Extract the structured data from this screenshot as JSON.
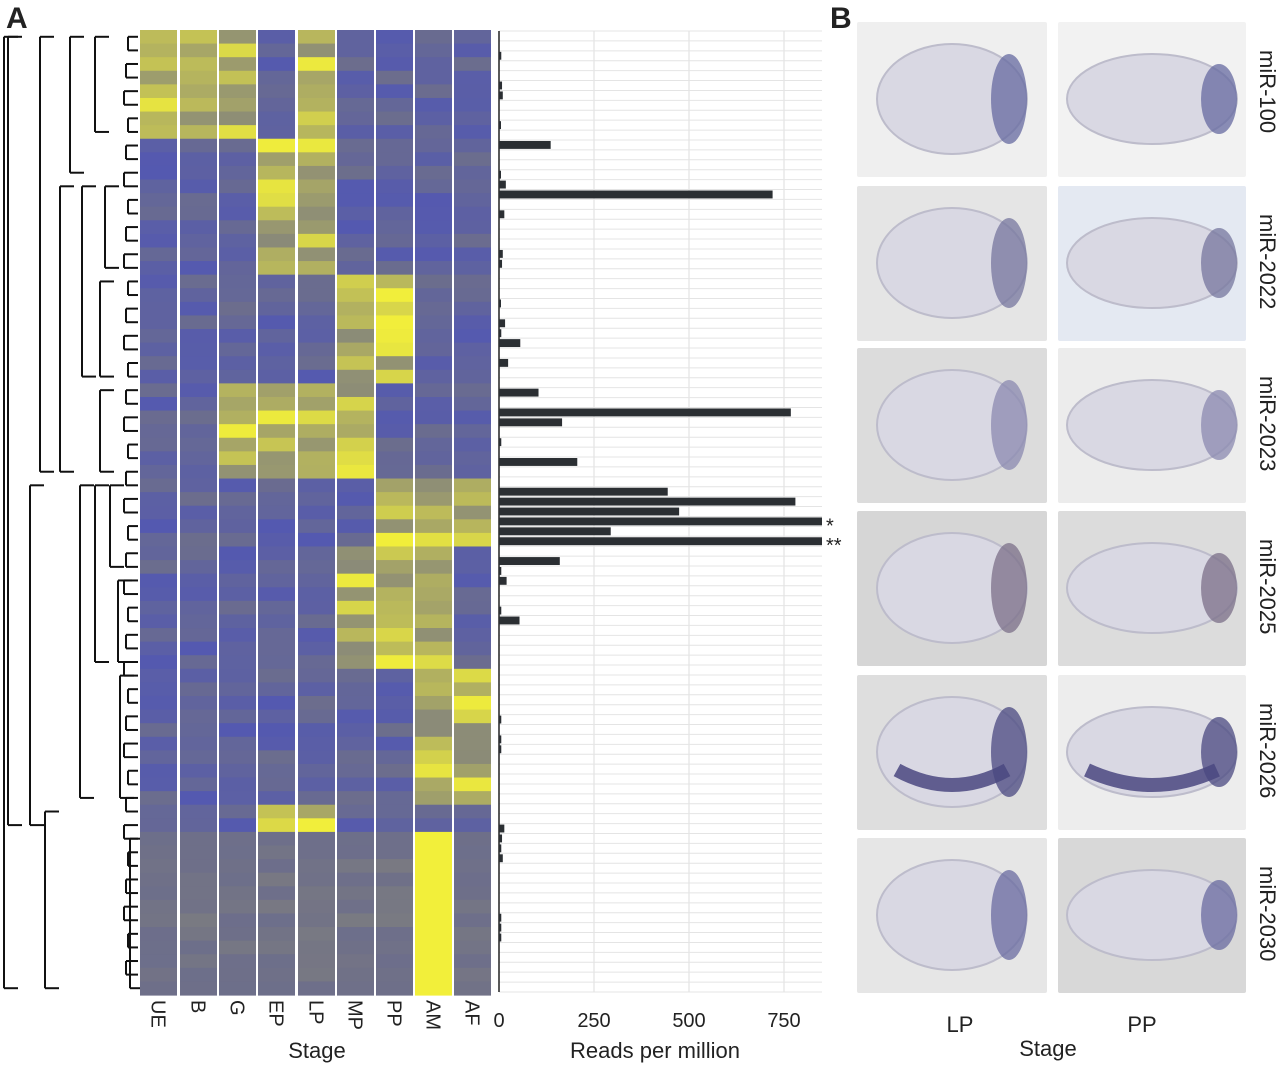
{
  "panel_a": {
    "letter": "A"
  },
  "panel_b": {
    "letter": "B"
  },
  "chart_data": [
    {
      "type": "heatmap",
      "columns": [
        "UE",
        "B",
        "G",
        "EP",
        "LP",
        "MP",
        "PP",
        "AM",
        "AF"
      ],
      "xlabel": "Stage",
      "row_count": 71,
      "colors": {
        "low": "#5459b0",
        "mid": "#6f7088",
        "high": "#f2ef3a"
      }
    },
    {
      "type": "bar",
      "orientation": "horizontal",
      "xlabel": "Reads per million",
      "xticks": [
        0,
        250,
        500,
        750
      ],
      "xlim": [
        0,
        850
      ],
      "values": [
        0,
        0,
        6,
        0,
        0,
        8,
        10,
        0,
        0,
        4,
        0,
        136,
        0,
        0,
        4,
        18,
        720,
        0,
        14,
        0,
        0,
        0,
        10,
        8,
        0,
        0,
        0,
        4,
        0,
        16,
        6,
        56,
        0,
        24,
        0,
        0,
        104,
        0,
        768,
        166,
        0,
        6,
        0,
        206,
        0,
        0,
        444,
        780,
        474,
        850,
        294,
        850,
        0,
        160,
        6,
        20,
        0,
        0,
        6,
        54,
        0,
        0,
        0,
        0,
        0,
        0,
        0,
        0,
        0,
        6,
        0,
        6,
        6,
        0,
        0,
        0,
        0,
        0,
        0,
        0,
        14,
        8,
        6,
        10,
        0,
        0,
        0,
        0,
        0,
        6,
        6,
        6,
        0,
        0,
        0,
        0,
        0
      ],
      "annotations": [
        {
          "row": 49,
          "text": "*"
        },
        {
          "row": 51,
          "text": "**"
        }
      ],
      "bar_color": "#2b2f33"
    }
  ],
  "images": {
    "mirnas": [
      "miR-100",
      "miR-2022",
      "miR-2023",
      "miR-2025",
      "miR-2026",
      "miR-2030"
    ],
    "columns": [
      "LP",
      "PP"
    ],
    "xlabel": "Stage"
  }
}
